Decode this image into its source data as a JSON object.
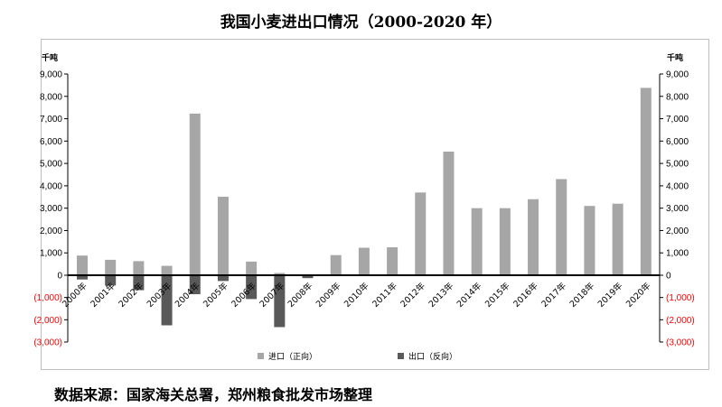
{
  "chart_data": {
    "type": "bar",
    "title": "我国小麦进出口情况（2000-2020 年）",
    "unit_left": "千吨",
    "unit_right": "千吨",
    "ylim": [
      -3000,
      9000
    ],
    "yticks": [
      9000,
      8000,
      7000,
      6000,
      5000,
      4000,
      3000,
      2000,
      1000,
      0,
      -1000,
      -2000,
      -3000
    ],
    "ytick_labels": [
      "9,000",
      "8,000",
      "7,000",
      "6,000",
      "5,000",
      "4,000",
      "3,000",
      "2,000",
      "1,000",
      "0",
      "(1,000)",
      "(2,000)",
      "(3,000)"
    ],
    "negative_tick_color": "#ff0000",
    "categories": [
      "2000年",
      "2001年",
      "2002年",
      "2003年",
      "2004年",
      "2005年",
      "2006年",
      "2007年",
      "2008年",
      "2009年",
      "2010年",
      "2011年",
      "2012年",
      "2013年",
      "2014年",
      "2015年",
      "2016年",
      "2017年",
      "2018年",
      "2019年",
      "2020年"
    ],
    "series": [
      {
        "name": "进口（正向）",
        "color": "#a6a6a6",
        "values": [
          880,
          690,
          630,
          420,
          7230,
          3510,
          610,
          100,
          40,
          900,
          1230,
          1250,
          3700,
          5530,
          3000,
          3000,
          3400,
          4300,
          3100,
          3200,
          8380
        ]
      },
      {
        "name": "出口（反向）",
        "color": "#595959",
        "values": [
          -190,
          -460,
          -670,
          -2250,
          -850,
          -260,
          -1070,
          -2330,
          -130,
          0,
          0,
          0,
          0,
          0,
          0,
          0,
          0,
          0,
          0,
          0,
          0
        ]
      }
    ],
    "grid": false,
    "legend_position": "bottom"
  },
  "source_note": "数据来源：国家海关总署，郑州粮食批发市场整理"
}
